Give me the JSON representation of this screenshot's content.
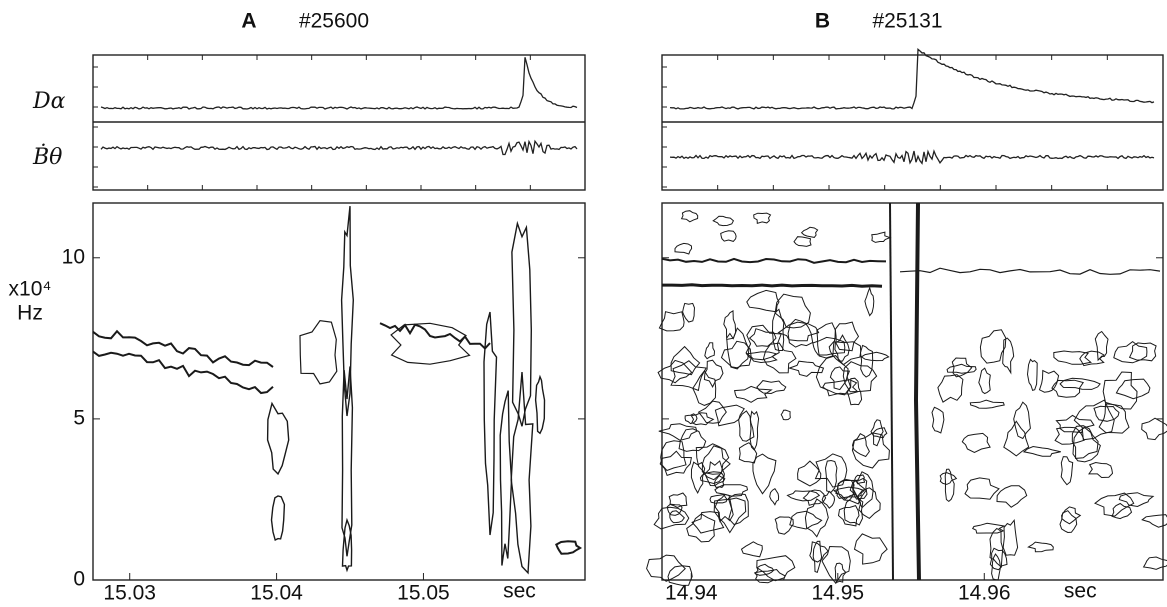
{
  "chart_data": [
    {
      "type": "contour",
      "title": "A",
      "subtitle": "#25600",
      "trace_labels": [
        "Dα",
        "Ḃθ"
      ],
      "y_label_lines": [
        "x10⁴",
        "Hz"
      ],
      "x_unit": "sec",
      "xlim": [
        15.0275,
        15.061
      ],
      "xticks": [
        15.03,
        15.04,
        15.05
      ],
      "ylim": [
        0,
        11.7
      ],
      "yticks": [
        0,
        5,
        10
      ],
      "ytick_labels": true
    },
    {
      "type": "contour",
      "title": "B",
      "subtitle": "#25131",
      "x_unit": "sec",
      "xlim": [
        14.938,
        14.9722
      ],
      "xticks": [
        14.94,
        14.95,
        14.96
      ],
      "ylim": [
        0,
        11.7
      ],
      "yticks": [
        0,
        5,
        10
      ],
      "ytick_labels": false
    }
  ]
}
